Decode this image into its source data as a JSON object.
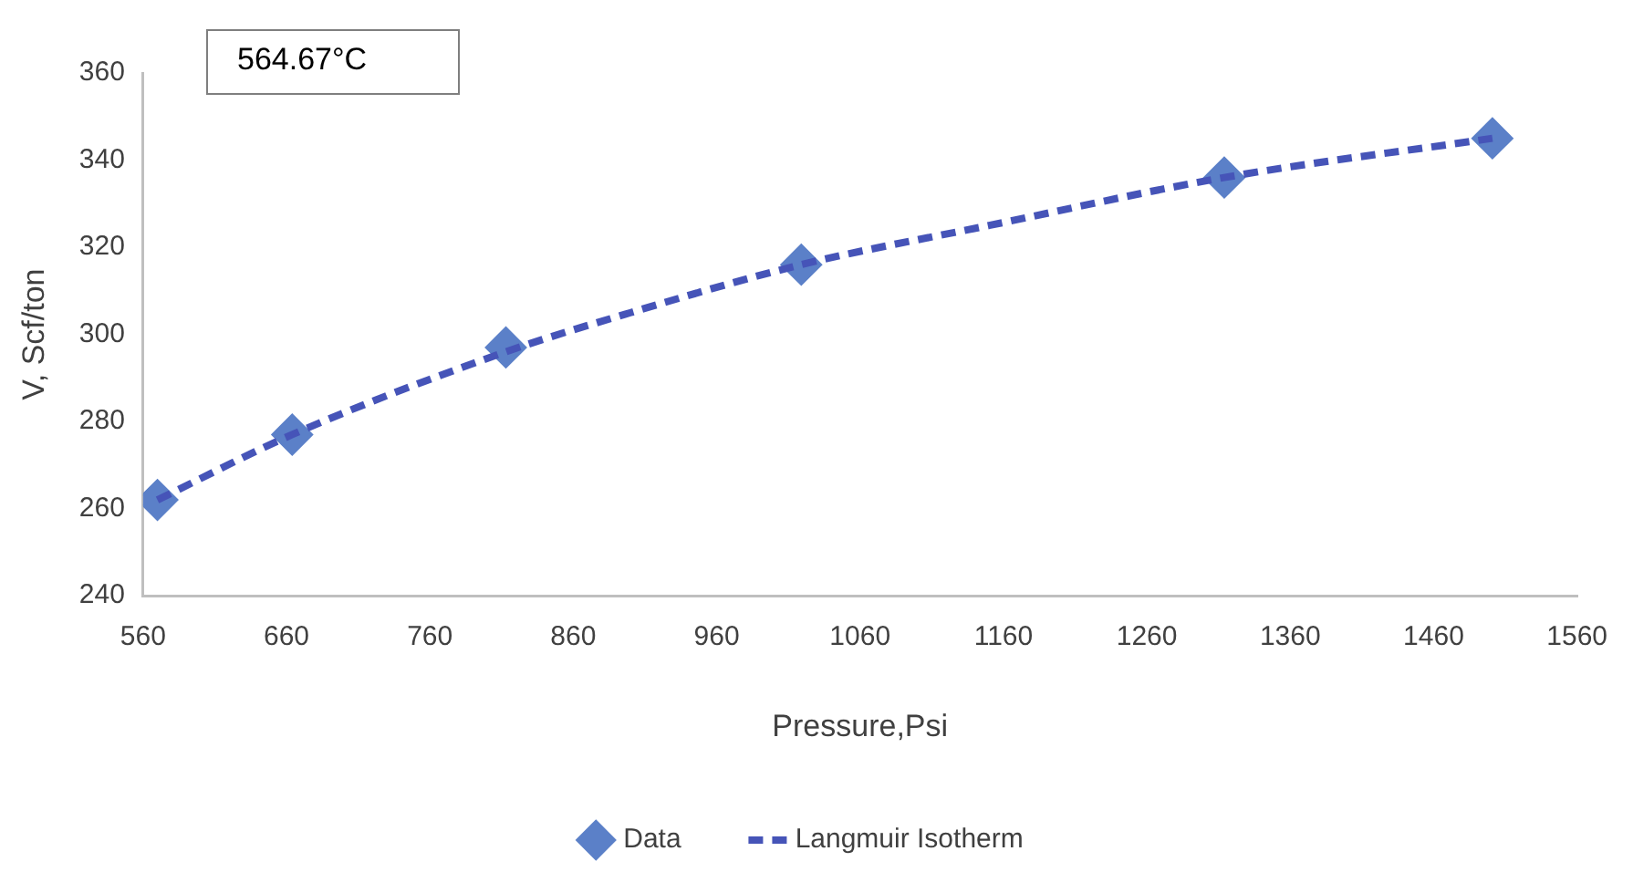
{
  "chart_data": {
    "type": "scatter",
    "xlabel": "Pressure,Psi",
    "ylabel": "V, Scf/ton",
    "annotations": [
      "564.67°C"
    ],
    "xlim": [
      560,
      1560
    ],
    "xticks": [
      560,
      660,
      760,
      860,
      960,
      1060,
      1160,
      1260,
      1360,
      1460,
      1560
    ],
    "ylim": [
      240,
      360
    ],
    "yticks": [
      240,
      260,
      280,
      300,
      320,
      340,
      360
    ],
    "grid": false,
    "legend": "bottom",
    "series": [
      {
        "name": "Data",
        "marker": "diamond",
        "color": "#5b80c8",
        "x": [
          570,
          664,
          813,
          1019,
          1314,
          1501
        ],
        "values": [
          262,
          277,
          297,
          316,
          336,
          345
        ]
      },
      {
        "name": "Langmuir Isotherm",
        "type": "line",
        "line_style": "dashed",
        "marker": "none",
        "color": "#4654b8",
        "x": [
          570,
          664,
          813,
          900,
          1019,
          1150,
          1314,
          1501
        ],
        "values": [
          262,
          277,
          296,
          305,
          316,
          325,
          336,
          345
        ]
      }
    ]
  }
}
